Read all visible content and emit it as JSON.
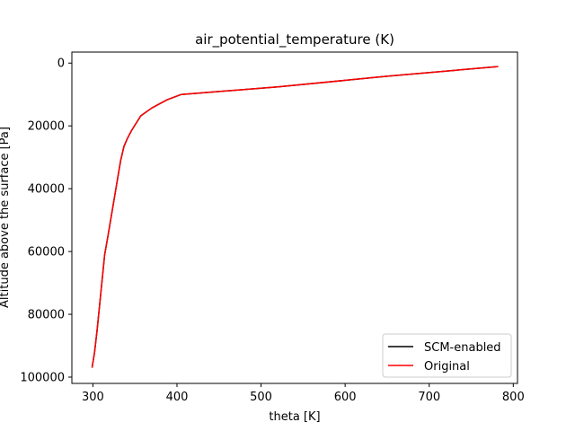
{
  "chart_data": {
    "type": "line",
    "title": "air_potential_temperature (K)",
    "xlabel": "theta [K]",
    "ylabel": "Altitude above the surface [Pa]",
    "xlim": [
      275,
      805
    ],
    "ylim": [
      102000,
      -3500
    ],
    "y_inverted": true,
    "xticks": [
      300,
      400,
      500,
      600,
      700,
      800
    ],
    "yticks": [
      0,
      20000,
      40000,
      60000,
      80000,
      100000
    ],
    "xtick_labels": [
      "300",
      "400",
      "500",
      "600",
      "700",
      "800"
    ],
    "ytick_labels": [
      "0",
      "20000",
      "40000",
      "60000",
      "80000",
      "100000"
    ],
    "grid": false,
    "legend_position": "lower right",
    "series": [
      {
        "name": "SCM-enabled",
        "color": "#000000",
        "x": [
          299,
          302,
          305,
          308,
          311,
          314,
          318,
          323,
          328,
          333,
          337,
          341,
          346,
          357,
          370,
          388,
          405,
          520,
          650,
          782
        ],
        "y": [
          97000,
          92000,
          85000,
          77000,
          69000,
          61000,
          55000,
          47000,
          39000,
          31000,
          26500,
          24000,
          21500,
          16800,
          14300,
          11700,
          10000,
          7600,
          4200,
          1100
        ]
      },
      {
        "name": "Original",
        "color": "#ff0000",
        "x": [
          299,
          302,
          305,
          308,
          311,
          314,
          318,
          323,
          328,
          333,
          337,
          341,
          346,
          357,
          370,
          388,
          405,
          520,
          650,
          782
        ],
        "y": [
          97000,
          92000,
          85000,
          77000,
          69000,
          61000,
          55000,
          47000,
          39000,
          31000,
          26500,
          24000,
          21500,
          16800,
          14300,
          11700,
          10000,
          7600,
          4200,
          1100
        ]
      }
    ]
  }
}
